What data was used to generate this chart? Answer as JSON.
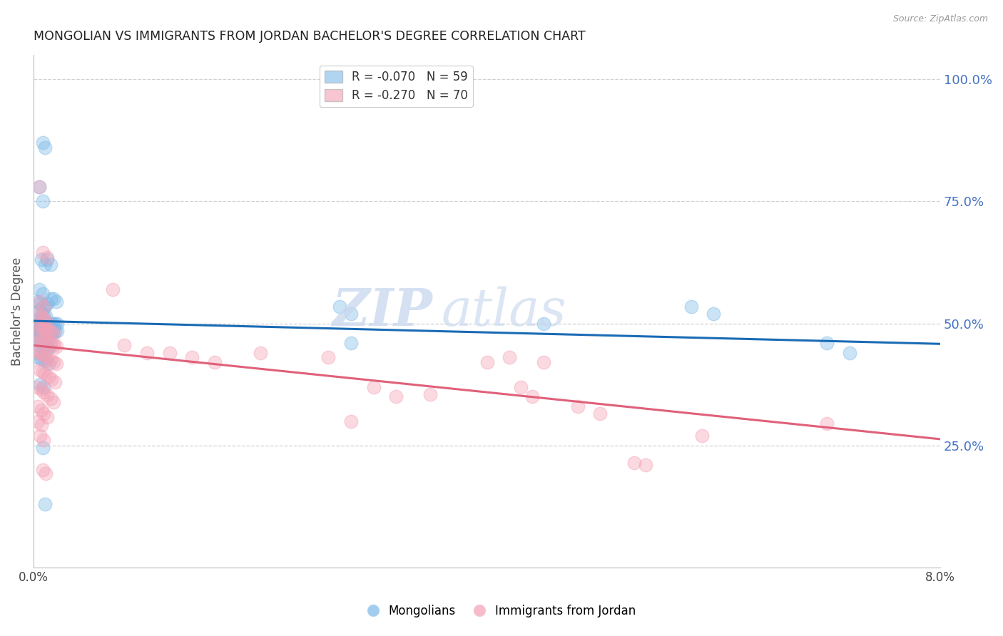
{
  "title": "MONGOLIAN VS IMMIGRANTS FROM JORDAN BACHELOR'S DEGREE CORRELATION CHART",
  "source": "Source: ZipAtlas.com",
  "ylabel": "Bachelor's Degree",
  "right_yticks": [
    "100.0%",
    "75.0%",
    "50.0%",
    "25.0%"
  ],
  "right_ytick_vals": [
    1.0,
    0.75,
    0.5,
    0.25
  ],
  "watermark_zip": "ZIP",
  "watermark_atl": "atlas",
  "legend_r1": "R = -0.070",
  "legend_n1": "N = 59",
  "legend_r2": "R = -0.270",
  "legend_n2": "N = 70",
  "legend_names": [
    "Mongolians",
    "Immigrants from Jordan"
  ],
  "blue_color": "#7cb9e8",
  "pink_color": "#f4a0b5",
  "trendline_blue": [
    0.0,
    0.505,
    0.08,
    0.458
  ],
  "trendline_pink": [
    0.0,
    0.455,
    0.08,
    0.263
  ],
  "blue_points": [
    [
      0.0008,
      0.87
    ],
    [
      0.001,
      0.86
    ],
    [
      0.0005,
      0.78
    ],
    [
      0.0008,
      0.75
    ],
    [
      0.0007,
      0.63
    ],
    [
      0.001,
      0.62
    ],
    [
      0.0012,
      0.63
    ],
    [
      0.0015,
      0.62
    ],
    [
      0.0005,
      0.57
    ],
    [
      0.0008,
      0.56
    ],
    [
      0.0004,
      0.545
    ],
    [
      0.0006,
      0.54
    ],
    [
      0.0008,
      0.535
    ],
    [
      0.001,
      0.535
    ],
    [
      0.0012,
      0.54
    ],
    [
      0.0015,
      0.55
    ],
    [
      0.0018,
      0.55
    ],
    [
      0.002,
      0.545
    ],
    [
      0.0005,
      0.525
    ],
    [
      0.0007,
      0.52
    ],
    [
      0.0009,
      0.515
    ],
    [
      0.0011,
      0.515
    ],
    [
      0.0003,
      0.505
    ],
    [
      0.0005,
      0.5
    ],
    [
      0.0007,
      0.498
    ],
    [
      0.0009,
      0.498
    ],
    [
      0.0011,
      0.499
    ],
    [
      0.0013,
      0.499
    ],
    [
      0.0015,
      0.5
    ],
    [
      0.0017,
      0.5
    ],
    [
      0.0019,
      0.5
    ],
    [
      0.0021,
      0.5
    ],
    [
      0.0003,
      0.488
    ],
    [
      0.0005,
      0.487
    ],
    [
      0.0007,
      0.487
    ],
    [
      0.0009,
      0.486
    ],
    [
      0.0011,
      0.486
    ],
    [
      0.0013,
      0.486
    ],
    [
      0.0015,
      0.485
    ],
    [
      0.0017,
      0.485
    ],
    [
      0.0019,
      0.484
    ],
    [
      0.0021,
      0.484
    ],
    [
      0.0004,
      0.473
    ],
    [
      0.0006,
      0.472
    ],
    [
      0.0008,
      0.471
    ],
    [
      0.001,
      0.47
    ],
    [
      0.0012,
      0.469
    ],
    [
      0.0014,
      0.468
    ],
    [
      0.0005,
      0.455
    ],
    [
      0.0008,
      0.453
    ],
    [
      0.001,
      0.452
    ],
    [
      0.0013,
      0.45
    ],
    [
      0.0004,
      0.43
    ],
    [
      0.0007,
      0.428
    ],
    [
      0.001,
      0.423
    ],
    [
      0.0013,
      0.418
    ],
    [
      0.0006,
      0.375
    ],
    [
      0.0009,
      0.37
    ],
    [
      0.0008,
      0.245
    ],
    [
      0.001,
      0.13
    ],
    [
      0.027,
      0.535
    ],
    [
      0.028,
      0.52
    ],
    [
      0.028,
      0.46
    ],
    [
      0.045,
      0.5
    ],
    [
      0.058,
      0.535
    ],
    [
      0.06,
      0.52
    ],
    [
      0.07,
      0.46
    ],
    [
      0.072,
      0.44
    ]
  ],
  "pink_points": [
    [
      0.0005,
      0.78
    ],
    [
      0.0008,
      0.645
    ],
    [
      0.0012,
      0.635
    ],
    [
      0.0006,
      0.545
    ],
    [
      0.0009,
      0.535
    ],
    [
      0.0004,
      0.52
    ],
    [
      0.0007,
      0.515
    ],
    [
      0.0009,
      0.51
    ],
    [
      0.0011,
      0.505
    ],
    [
      0.0004,
      0.497
    ],
    [
      0.0006,
      0.495
    ],
    [
      0.0008,
      0.493
    ],
    [
      0.001,
      0.49
    ],
    [
      0.0012,
      0.488
    ],
    [
      0.0014,
      0.485
    ],
    [
      0.0016,
      0.483
    ],
    [
      0.0018,
      0.48
    ],
    [
      0.0004,
      0.472
    ],
    [
      0.0006,
      0.469
    ],
    [
      0.0008,
      0.467
    ],
    [
      0.001,
      0.464
    ],
    [
      0.0012,
      0.461
    ],
    [
      0.0015,
      0.458
    ],
    [
      0.0018,
      0.455
    ],
    [
      0.002,
      0.452
    ],
    [
      0.0004,
      0.443
    ],
    [
      0.0006,
      0.44
    ],
    [
      0.0008,
      0.437
    ],
    [
      0.001,
      0.433
    ],
    [
      0.0012,
      0.429
    ],
    [
      0.0015,
      0.425
    ],
    [
      0.0018,
      0.421
    ],
    [
      0.002,
      0.417
    ],
    [
      0.0006,
      0.405
    ],
    [
      0.0008,
      0.401
    ],
    [
      0.001,
      0.397
    ],
    [
      0.0013,
      0.392
    ],
    [
      0.0016,
      0.386
    ],
    [
      0.0019,
      0.38
    ],
    [
      0.0004,
      0.37
    ],
    [
      0.0007,
      0.365
    ],
    [
      0.0009,
      0.359
    ],
    [
      0.0012,
      0.353
    ],
    [
      0.0015,
      0.346
    ],
    [
      0.0018,
      0.339
    ],
    [
      0.0004,
      0.33
    ],
    [
      0.0007,
      0.323
    ],
    [
      0.0009,
      0.316
    ],
    [
      0.0012,
      0.308
    ],
    [
      0.0004,
      0.3
    ],
    [
      0.0007,
      0.292
    ],
    [
      0.0006,
      0.27
    ],
    [
      0.0009,
      0.261
    ],
    [
      0.0008,
      0.2
    ],
    [
      0.0011,
      0.193
    ],
    [
      0.007,
      0.57
    ],
    [
      0.008,
      0.455
    ],
    [
      0.01,
      0.44
    ],
    [
      0.012,
      0.44
    ],
    [
      0.014,
      0.43
    ],
    [
      0.016,
      0.42
    ],
    [
      0.02,
      0.44
    ],
    [
      0.026,
      0.43
    ],
    [
      0.028,
      0.3
    ],
    [
      0.03,
      0.37
    ],
    [
      0.032,
      0.35
    ],
    [
      0.035,
      0.355
    ],
    [
      0.04,
      0.42
    ],
    [
      0.042,
      0.43
    ],
    [
      0.043,
      0.37
    ],
    [
      0.044,
      0.35
    ],
    [
      0.045,
      0.42
    ],
    [
      0.048,
      0.33
    ],
    [
      0.05,
      0.315
    ],
    [
      0.053,
      0.215
    ],
    [
      0.054,
      0.21
    ],
    [
      0.059,
      0.27
    ],
    [
      0.07,
      0.295
    ]
  ],
  "xlim": [
    0.0,
    0.08
  ],
  "ylim": [
    0.0,
    1.05
  ],
  "xtick_positions": [
    0.0,
    0.08
  ],
  "xtick_labels": [
    "0.0%",
    "8.0%"
  ],
  "background_color": "#ffffff",
  "grid_color": "#d0d0d0"
}
